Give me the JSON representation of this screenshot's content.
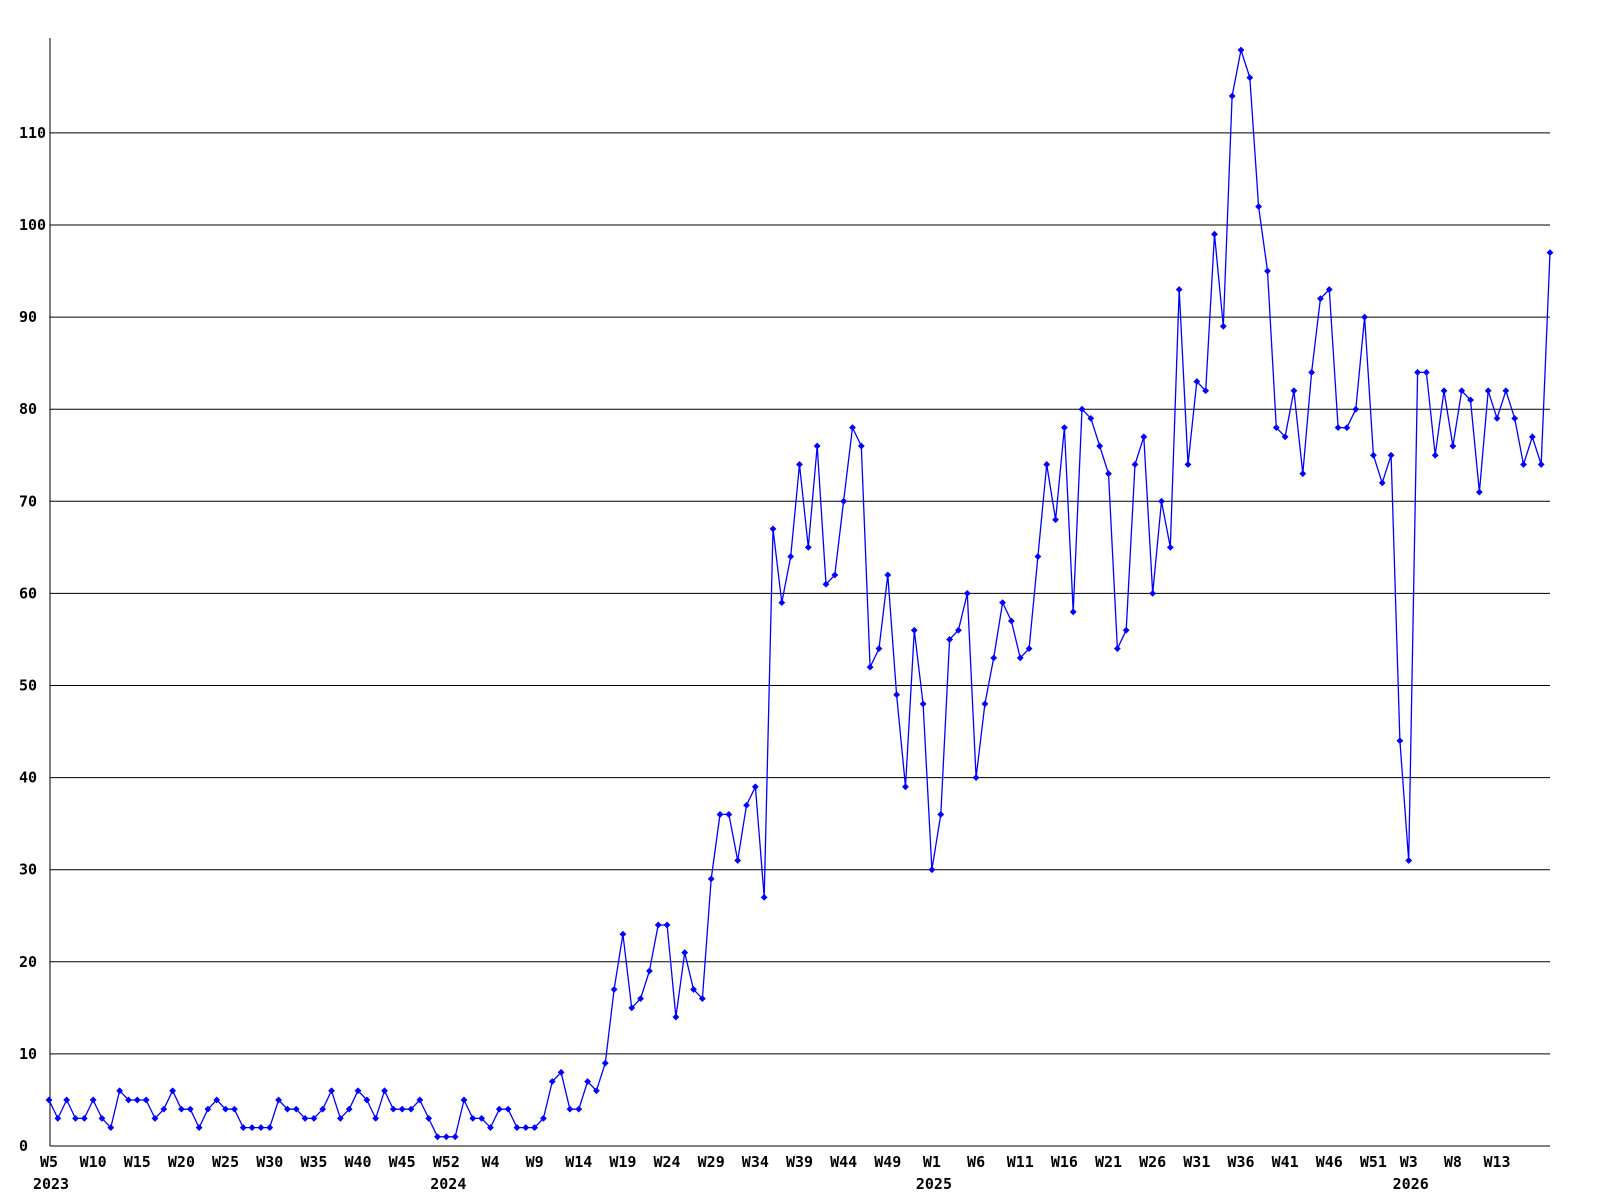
{
  "chart_data": {
    "type": "line",
    "title": "",
    "legend": "none",
    "grid": "horizontal",
    "background_color": "#ffffff",
    "line_color": "#0000ff",
    "marker": "diamond",
    "grid_color": "#000000",
    "axis_color": "#000000",
    "text_color": "#000000",
    "x_unit": "ISO week",
    "ylim": [
      0,
      120
    ],
    "y_ticks": [
      0,
      10,
      20,
      30,
      40,
      50,
      60,
      70,
      80,
      90,
      100,
      110
    ],
    "x_ticks": [
      {
        "index": 0,
        "label": "W5",
        "year": "2023"
      },
      {
        "index": 5,
        "label": "W10"
      },
      {
        "index": 10,
        "label": "W15"
      },
      {
        "index": 15,
        "label": "W20"
      },
      {
        "index": 20,
        "label": "W25"
      },
      {
        "index": 25,
        "label": "W30"
      },
      {
        "index": 30,
        "label": "W35"
      },
      {
        "index": 35,
        "label": "W40"
      },
      {
        "index": 40,
        "label": "W45"
      },
      {
        "index": 45,
        "label": "W52",
        "year": "2024"
      },
      {
        "index": 50,
        "label": "W4"
      },
      {
        "index": 55,
        "label": "W9"
      },
      {
        "index": 60,
        "label": "W14"
      },
      {
        "index": 65,
        "label": "W19"
      },
      {
        "index": 70,
        "label": "W24"
      },
      {
        "index": 75,
        "label": "W29"
      },
      {
        "index": 80,
        "label": "W34"
      },
      {
        "index": 85,
        "label": "W39"
      },
      {
        "index": 90,
        "label": "W44"
      },
      {
        "index": 95,
        "label": "W49"
      },
      {
        "index": 100,
        "label": "W1",
        "year": "2025"
      },
      {
        "index": 105,
        "label": "W6"
      },
      {
        "index": 110,
        "label": "W11"
      },
      {
        "index": 115,
        "label": "W16"
      },
      {
        "index": 120,
        "label": "W21"
      },
      {
        "index": 125,
        "label": "W26"
      },
      {
        "index": 130,
        "label": "W31"
      },
      {
        "index": 135,
        "label": "W36"
      },
      {
        "index": 140,
        "label": "W41"
      },
      {
        "index": 145,
        "label": "W46"
      },
      {
        "index": 150,
        "label": "W51"
      },
      {
        "index": 154,
        "label": "W3",
        "year": "2026"
      },
      {
        "index": 159,
        "label": "W8"
      },
      {
        "index": 164,
        "label": "W13"
      }
    ],
    "values": [
      5,
      3,
      5,
      3,
      3,
      5,
      3,
      2,
      6,
      5,
      5,
      5,
      3,
      4,
      6,
      4,
      4,
      2,
      4,
      5,
      4,
      4,
      2,
      2,
      2,
      2,
      5,
      4,
      4,
      3,
      3,
      4,
      6,
      3,
      4,
      6,
      5,
      3,
      6,
      4,
      4,
      4,
      5,
      3,
      1,
      1,
      1,
      5,
      3,
      3,
      2,
      4,
      4,
      2,
      2,
      2,
      3,
      7,
      8,
      4,
      4,
      7,
      6,
      9,
      17,
      23,
      15,
      16,
      19,
      24,
      24,
      14,
      21,
      17,
      16,
      29,
      36,
      36,
      31,
      37,
      39,
      27,
      67,
      59,
      64,
      74,
      65,
      76,
      61,
      62,
      70,
      78,
      76,
      52,
      54,
      62,
      49,
      39,
      56,
      48,
      30,
      36,
      55,
      56,
      60,
      40,
      48,
      53,
      59,
      57,
      53,
      54,
      64,
      74,
      68,
      78,
      58,
      80,
      79,
      76,
      73,
      54,
      56,
      74,
      77,
      60,
      70,
      65,
      93,
      74,
      83,
      82,
      99,
      89,
      114,
      119,
      116,
      102,
      95,
      78,
      77,
      82,
      73,
      84,
      92,
      93,
      78,
      78,
      80,
      90,
      75,
      72,
      75,
      44,
      31,
      84,
      84,
      75,
      82,
      76,
      82,
      81,
      71,
      82,
      79,
      82,
      79,
      74,
      77,
      74,
      97
    ]
  }
}
